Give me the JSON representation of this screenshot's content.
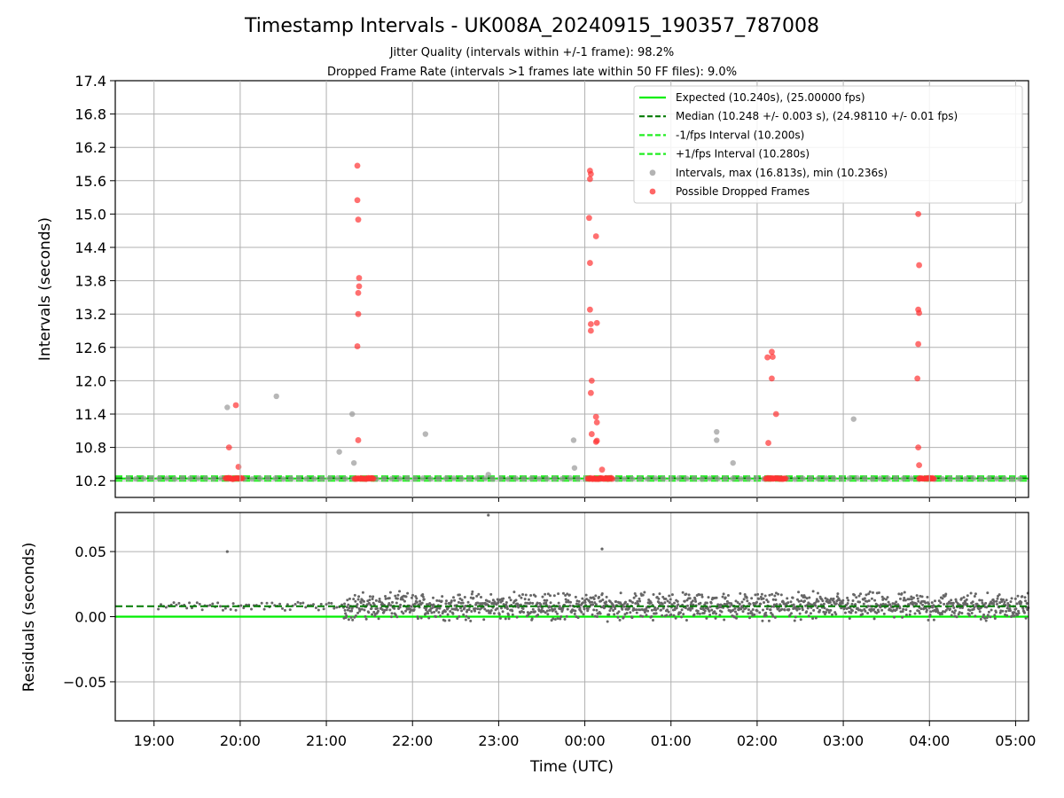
{
  "chart_data": [
    {
      "type": "scatter",
      "title": "Timestamp Intervals - UK008A_20240915_190357_787008",
      "subtitle_lines": [
        "Jitter Quality (intervals within +/-1 frame): 98.2%",
        "Dropped Frame Rate (intervals >1 frames late within 50 FF files): 9.0%"
      ],
      "xlabel": "",
      "ylabel": "Intervals (seconds)",
      "x_unit": "hours since 19:00 UTC",
      "xlim": [
        -0.45,
        10.15
      ],
      "ylim": [
        9.9,
        17.4
      ],
      "yticks": [
        10.2,
        10.8,
        11.4,
        12.0,
        12.6,
        13.2,
        13.8,
        14.4,
        15.0,
        15.6,
        16.2,
        16.8,
        17.4
      ],
      "ytick_labels": [
        "10.2",
        "10.8",
        "11.4",
        "12.0",
        "12.6",
        "13.2",
        "13.8",
        "14.4",
        "15.0",
        "15.6",
        "16.2",
        "16.8",
        "17.4"
      ],
      "grid": "y",
      "legend_position": "top-right",
      "colors": {
        "expected": "#00ee00",
        "median": "#007a00",
        "interval_bounds": "#22ee22",
        "intervals": "#999999",
        "dropped": "#ff3333"
      },
      "series": [
        {
          "name": "Expected (10.240s), (25.00000 fps)",
          "kind": "hline",
          "y": 10.24,
          "style": "solid"
        },
        {
          "name": "Median (10.248 +/- 0.003 s), (24.98110 +/- 0.01 fps)",
          "kind": "hline",
          "y": 10.248,
          "style": "dashed"
        },
        {
          "name": "-1/fps Interval (10.200s)",
          "kind": "hline",
          "y": 10.2,
          "style": "dashed"
        },
        {
          "name": "+1/fps Interval (10.280s)",
          "kind": "hline",
          "y": 10.28,
          "style": "dashed"
        },
        {
          "name": "Intervals, max (16.813s), min (10.236s)",
          "kind": "scatter",
          "points": [
            [
              0.85,
              11.52
            ],
            [
              1.42,
              11.72
            ],
            [
              2.15,
              10.72
            ],
            [
              2.3,
              11.4
            ],
            [
              2.32,
              10.52
            ],
            [
              3.15,
              11.04
            ],
            [
              3.88,
              10.31
            ],
            [
              4.87,
              10.93
            ],
            [
              4.88,
              10.43
            ],
            [
              6.53,
              11.08
            ],
            [
              6.53,
              10.93
            ],
            [
              6.72,
              10.52
            ],
            [
              8.12,
              11.31
            ]
          ]
        },
        {
          "name": "Possible Dropped Frames",
          "kind": "scatter",
          "points": [
            [
              0.87,
              10.8
            ],
            [
              0.95,
              11.56
            ],
            [
              0.98,
              10.45
            ],
            [
              2.36,
              15.87
            ],
            [
              2.36,
              15.25
            ],
            [
              2.37,
              14.9
            ],
            [
              2.38,
              13.85
            ],
            [
              2.38,
              13.7
            ],
            [
              2.37,
              13.58
            ],
            [
              2.37,
              13.2
            ],
            [
              2.36,
              12.62
            ],
            [
              2.37,
              10.93
            ],
            [
              5.06,
              15.78
            ],
            [
              5.07,
              15.72
            ],
            [
              5.06,
              15.63
            ],
            [
              5.05,
              14.93
            ],
            [
              5.13,
              14.6
            ],
            [
              5.06,
              14.12
            ],
            [
              5.06,
              13.28
            ],
            [
              5.07,
              13.02
            ],
            [
              5.14,
              13.04
            ],
            [
              5.07,
              12.9
            ],
            [
              5.08,
              12.0
            ],
            [
              5.07,
              11.78
            ],
            [
              5.13,
              11.35
            ],
            [
              5.14,
              11.25
            ],
            [
              5.08,
              11.04
            ],
            [
              5.14,
              10.92
            ],
            [
              5.13,
              10.9
            ],
            [
              5.2,
              10.4
            ],
            [
              7.12,
              12.42
            ],
            [
              7.17,
              12.52
            ],
            [
              7.18,
              12.43
            ],
            [
              7.17,
              12.04
            ],
            [
              7.22,
              11.4
            ],
            [
              7.13,
              10.88
            ],
            [
              8.87,
              15.0
            ],
            [
              8.88,
              14.08
            ],
            [
              8.87,
              13.28
            ],
            [
              8.88,
              13.22
            ],
            [
              8.87,
              12.66
            ],
            [
              8.86,
              12.04
            ],
            [
              8.87,
              10.8
            ],
            [
              8.88,
              10.48
            ]
          ],
          "clusters_near_baseline": [
            [
              0.83,
              1.03
            ],
            [
              2.33,
              2.55
            ],
            [
              5.03,
              5.32
            ],
            [
              7.1,
              7.33
            ],
            [
              8.88,
              9.05
            ]
          ]
        }
      ]
    },
    {
      "type": "scatter",
      "title": "",
      "xlabel": "Time (UTC)",
      "ylabel": "Residuals (seconds)",
      "x_unit": "hours since 19:00 UTC",
      "xlim": [
        -0.45,
        10.15
      ],
      "ylim": [
        -0.08,
        0.08
      ],
      "yticks": [
        -0.05,
        0.0,
        0.05
      ],
      "ytick_labels": [
        "−0.05",
        "0.00",
        "0.05"
      ],
      "xticks": [
        0,
        1,
        2,
        3,
        4,
        5,
        6,
        7,
        8,
        9,
        10
      ],
      "xtick_labels": [
        "19:00",
        "20:00",
        "21:00",
        "22:00",
        "23:00",
        "00:00",
        "01:00",
        "02:00",
        "03:00",
        "04:00",
        "05:00"
      ],
      "grid": "both",
      "series": [
        {
          "kind": "hline",
          "y": 0.0,
          "style": "solid",
          "color": "#00ee00"
        },
        {
          "kind": "hline",
          "y": 0.008,
          "style": "dashed",
          "color": "#007a00"
        },
        {
          "kind": "scatter",
          "color": "#666666",
          "outliers": [
            [
              0.85,
              0.05
            ],
            [
              3.88,
              0.078
            ],
            [
              5.2,
              0.052
            ]
          ],
          "bands": [
            {
              "x": [
                0.05,
                2.2
              ],
              "center": 0.008,
              "spread": 0.004
            },
            {
              "x": [
                2.2,
                10.15
              ],
              "center": 0.008,
              "spread": 0.012
            }
          ]
        }
      ]
    }
  ]
}
